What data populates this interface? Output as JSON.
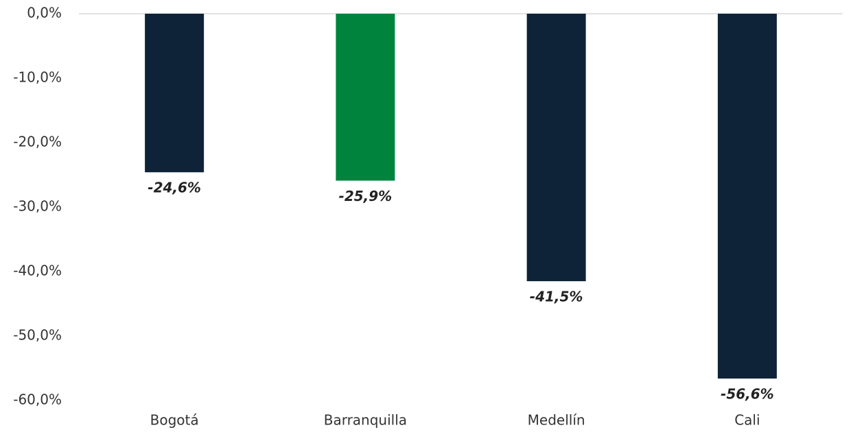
{
  "chart_data": {
    "type": "bar",
    "categories": [
      "Bogotá",
      "Barranquilla",
      "Medellín",
      "Cali"
    ],
    "values": [
      -24.6,
      -25.9,
      -41.5,
      -56.6
    ],
    "value_labels": [
      "-24,6%",
      "-25,9%",
      "-41,5%",
      "-56,6%"
    ],
    "colors": [
      "#0e2337",
      "#00843d",
      "#0e2337",
      "#0e2337"
    ],
    "ylim": [
      -60,
      0
    ],
    "yticks": [
      {
        "value": 0,
        "label": "0,0%"
      },
      {
        "value": -10,
        "label": "-10,0%"
      },
      {
        "value": -20,
        "label": "-20,0%"
      },
      {
        "value": -30,
        "label": "-30,0%"
      },
      {
        "value": -40,
        "label": "-40,0%"
      },
      {
        "value": -50,
        "label": "-50,0%"
      },
      {
        "value": -60,
        "label": "-60,0%"
      }
    ],
    "grid": false
  }
}
